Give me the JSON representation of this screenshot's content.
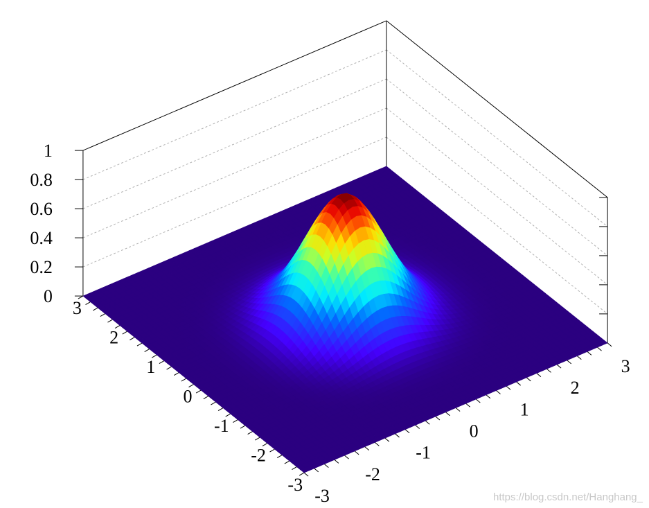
{
  "chart_data": {
    "type": "surface",
    "function": "Gaussian peak z = 0.85·exp(-(x²+y²)/0.9)",
    "x": {
      "ticks": [
        -3,
        -2,
        -1,
        0,
        1,
        2,
        3
      ],
      "labels": [
        "-3",
        "-2",
        "-1",
        "0",
        "1",
        "2",
        "3"
      ],
      "range": [
        -3,
        3
      ]
    },
    "y": {
      "ticks": [
        -3,
        -2,
        -1,
        0,
        1,
        2,
        3
      ],
      "labels": [
        "-3",
        "-2",
        "-1",
        "0",
        "1",
        "2",
        "3"
      ],
      "range": [
        -3,
        3
      ]
    },
    "z": {
      "ticks": [
        0,
        0.2,
        0.4,
        0.6,
        0.8,
        1
      ],
      "labels": [
        "0",
        "0.2",
        "0.4",
        "0.6",
        "0.8",
        "1"
      ],
      "range": [
        0,
        1
      ]
    },
    "peak": {
      "x": 0,
      "y": 0,
      "z": 0.85
    },
    "colormap": "jet",
    "base_color": "#2b0080",
    "grid": true
  },
  "watermark": "https://blog.csdn.net/Hanghang_"
}
